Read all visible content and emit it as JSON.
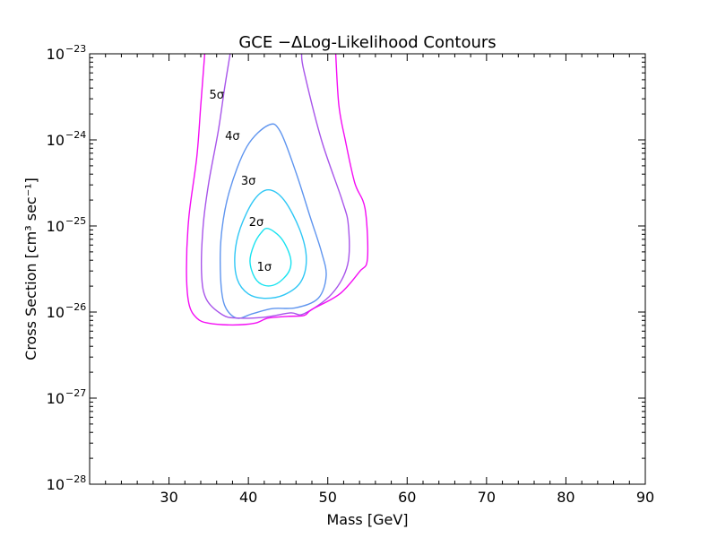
{
  "chart_data": {
    "type": "contour",
    "title": "GCE −ΔLog-Likelihood Contours",
    "xlabel": "Mass [GeV]",
    "ylabel": "Cross Section [cm³ sec⁻¹]",
    "xlim": [
      20,
      90
    ],
    "ylim_log10": [
      -28,
      -23
    ],
    "yscale": "log",
    "xticks": [
      30,
      40,
      50,
      60,
      70,
      80,
      90
    ],
    "yticks": [
      {
        "exp": -28,
        "label": "10",
        "sup": "−28"
      },
      {
        "exp": -27,
        "label": "10",
        "sup": "−27"
      },
      {
        "exp": -26,
        "label": "10",
        "sup": "−26"
      },
      {
        "exp": -25,
        "label": "10",
        "sup": "−25"
      },
      {
        "exp": -24,
        "label": "10",
        "sup": "−24"
      },
      {
        "exp": -23,
        "label": "10",
        "sup": "−23"
      }
    ],
    "grid": false,
    "legend": "none",
    "contours": [
      {
        "label": "1σ",
        "color": "#19e3f0",
        "closed": true,
        "points": [
          [
            42.5,
            -25.03
          ],
          [
            44.2,
            -25.15
          ],
          [
            45.3,
            -25.37
          ],
          [
            45.1,
            -25.53
          ],
          [
            43.6,
            -25.67
          ],
          [
            42.0,
            -25.69
          ],
          [
            40.8,
            -25.6
          ],
          [
            40.2,
            -25.41
          ],
          [
            40.7,
            -25.22
          ],
          [
            41.6,
            -25.08
          ]
        ]
      },
      {
        "label": "2σ",
        "color": "#2fc7f5",
        "closed": true,
        "points": [
          [
            42.5,
            -24.58
          ],
          [
            44.5,
            -24.7
          ],
          [
            46.5,
            -25.05
          ],
          [
            47.3,
            -25.38
          ],
          [
            46.6,
            -25.65
          ],
          [
            44.5,
            -25.8
          ],
          [
            42.0,
            -25.84
          ],
          [
            40.0,
            -25.79
          ],
          [
            38.6,
            -25.62
          ],
          [
            38.3,
            -25.33
          ],
          [
            39.0,
            -25.02
          ],
          [
            40.7,
            -24.7
          ]
        ]
      },
      {
        "label": "3σ",
        "color": "#5f95ef",
        "closed": true,
        "points": [
          [
            42.5,
            -23.83
          ],
          [
            44.0,
            -23.9
          ],
          [
            46.0,
            -24.38
          ],
          [
            47.8,
            -24.9
          ],
          [
            49.2,
            -25.3
          ],
          [
            49.8,
            -25.58
          ],
          [
            48.8,
            -25.84
          ],
          [
            46.0,
            -25.95
          ],
          [
            43.0,
            -25.96
          ],
          [
            40.5,
            -26.02
          ],
          [
            38.5,
            -26.07
          ],
          [
            37.0,
            -25.92
          ],
          [
            36.5,
            -25.6
          ],
          [
            36.6,
            -25.1
          ],
          [
            37.6,
            -24.6
          ],
          [
            39.8,
            -24.08
          ]
        ]
      },
      {
        "label": "4σ",
        "color": "#a855ea",
        "closed": false,
        "points": [
          [
            37.7,
            -23.0
          ],
          [
            37.0,
            -23.4
          ],
          [
            36.2,
            -23.9
          ],
          [
            35.0,
            -24.5
          ],
          [
            34.3,
            -25.0
          ],
          [
            34.1,
            -25.55
          ],
          [
            34.7,
            -25.85
          ],
          [
            36.7,
            -26.03
          ],
          [
            38.5,
            -26.07
          ],
          [
            42.0,
            -26.06
          ],
          [
            45.3,
            -26.01
          ],
          [
            47.0,
            -26.02
          ],
          [
            50.5,
            -25.79
          ],
          [
            52.5,
            -25.45
          ],
          [
            52.6,
            -25.0
          ],
          [
            51.8,
            -24.7
          ],
          [
            49.2,
            -24.0
          ],
          [
            47.0,
            -23.2
          ],
          [
            46.7,
            -23.0
          ]
        ]
      },
      {
        "label": "5σ",
        "color": "#f40cf4",
        "closed": false,
        "points": [
          [
            34.5,
            -23.0
          ],
          [
            34.0,
            -23.6
          ],
          [
            33.5,
            -24.2
          ],
          [
            32.5,
            -24.9
          ],
          [
            32.2,
            -25.5
          ],
          [
            32.5,
            -25.9
          ],
          [
            33.5,
            -26.07
          ],
          [
            35.0,
            -26.13
          ],
          [
            38.0,
            -26.15
          ],
          [
            40.8,
            -26.13
          ],
          [
            42.5,
            -26.07
          ],
          [
            45.0,
            -26.05
          ],
          [
            47.0,
            -26.04
          ],
          [
            48.0,
            -25.97
          ],
          [
            51.5,
            -25.79
          ],
          [
            54.0,
            -25.53
          ],
          [
            55.0,
            -25.38
          ],
          [
            54.7,
            -24.8
          ],
          [
            53.4,
            -24.5
          ],
          [
            52.2,
            -24.0
          ],
          [
            51.4,
            -23.6
          ],
          [
            51.0,
            -23.0
          ]
        ]
      }
    ],
    "contour_labels": [
      {
        "text": "1σ",
        "x": 42.0,
        "y": -25.52
      },
      {
        "text": "2σ",
        "x": 41.0,
        "y": -25.0
      },
      {
        "text": "3σ",
        "x": 40.0,
        "y": -24.52
      },
      {
        "text": "4σ",
        "x": 38.0,
        "y": -24.0
      },
      {
        "text": "5σ",
        "x": 36.0,
        "y": -23.52
      }
    ]
  }
}
